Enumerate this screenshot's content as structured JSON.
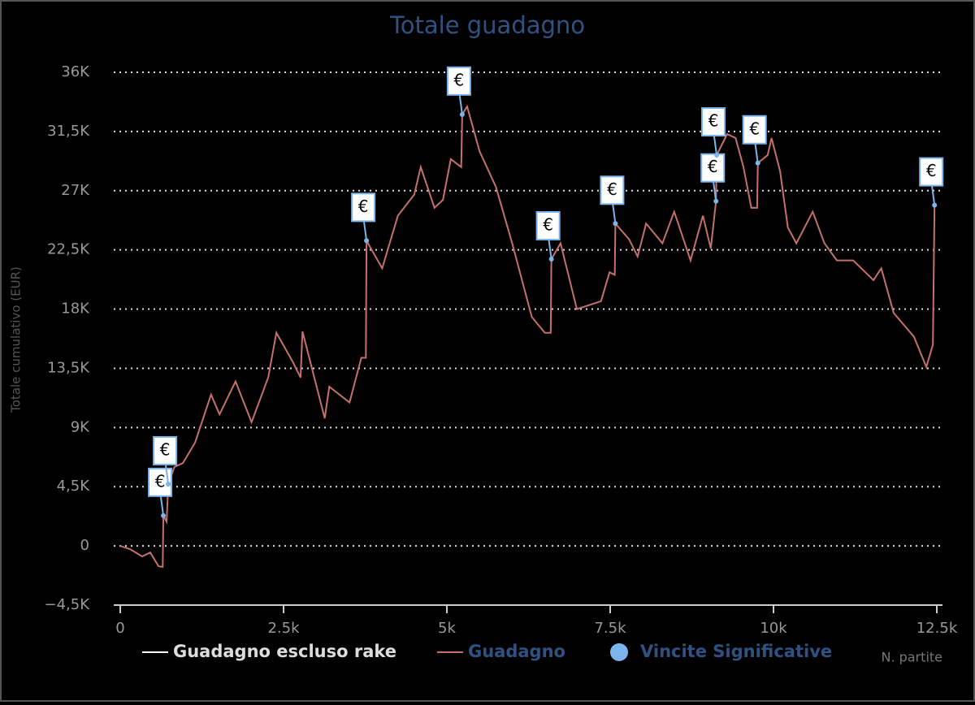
{
  "chart_data": {
    "type": "line",
    "title": "Totale guadagno",
    "x_label": "N. partite",
    "y_label": "Totale cumulativo (EUR)",
    "xlim": [
      0,
      12500
    ],
    "xticks": [
      0,
      {
        "value": 2500,
        "label": "2.5k"
      },
      {
        "value": 5000,
        "label": "5k"
      },
      {
        "value": 7500,
        "label": "7.5k"
      },
      {
        "value": 10000,
        "label": "10k"
      },
      {
        "value": 12500,
        "label": "12.5k"
      }
    ],
    "ylim": [
      -4500,
      36000
    ],
    "yticks": [
      {
        "value": -4500,
        "label": "−4,5K"
      },
      0,
      {
        "value": 4500,
        "label": "4,5K"
      },
      {
        "value": 9000,
        "label": "9K"
      },
      {
        "value": 13500,
        "label": "13,5K"
      },
      {
        "value": 18000,
        "label": "18K"
      },
      {
        "value": 22500,
        "label": "22,5K"
      },
      {
        "value": 27000,
        "label": "27K"
      },
      {
        "value": 31500,
        "label": "31,5K"
      },
      {
        "value": 36000,
        "label": "36K"
      }
    ],
    "grid": true,
    "legend": "bottom",
    "marker_label": "€",
    "series": [
      {
        "name": "Guadagno escluso rake",
        "color": "#ffffff"
      },
      {
        "name": "Guadagno",
        "color": "#c4716c",
        "x": [
          0,
          150,
          335,
          460,
          585,
          650,
          660,
          710,
          735,
          830,
          960,
          1145,
          1390,
          1520,
          1765,
          2010,
          2265,
          2390,
          2640,
          2760,
          2790,
          3130,
          3200,
          3510,
          3690,
          3760,
          3770,
          4010,
          4250,
          4500,
          4600,
          4810,
          4940,
          5060,
          5220,
          5235,
          5310,
          5500,
          5750,
          6000,
          6300,
          6500,
          6590,
          6600,
          6740,
          6990,
          7360,
          7490,
          7570,
          7580,
          7790,
          7920,
          8050,
          8300,
          8480,
          8730,
          8920,
          9040,
          9120,
          9130,
          9290,
          9420,
          9540,
          9660,
          9750,
          9760,
          9910,
          9970,
          10100,
          10220,
          10350,
          10600,
          10780,
          10970,
          11220,
          11530,
          11650,
          11840,
          12150,
          12340,
          12440,
          12465
        ],
        "values": [
          0,
          -250,
          -800,
          -500,
          -1540,
          -1600,
          2300,
          1850,
          4700,
          6000,
          6300,
          7850,
          11500,
          10000,
          12500,
          9400,
          12800,
          16200,
          14000,
          12800,
          16300,
          9700,
          12100,
          10900,
          14300,
          14300,
          23200,
          21100,
          25100,
          26700,
          28800,
          25700,
          26300,
          29400,
          28800,
          32800,
          33400,
          30000,
          27300,
          23000,
          17400,
          16200,
          16200,
          21800,
          23000,
          18000,
          18600,
          20800,
          20600,
          24500,
          23300,
          22000,
          24500,
          23000,
          25400,
          21700,
          25100,
          22600,
          26200,
          29700,
          31300,
          31000,
          28800,
          25700,
          25700,
          29100,
          29700,
          31000,
          28500,
          24200,
          23000,
          25400,
          23000,
          21700,
          21700,
          20200,
          21100,
          17700,
          15900,
          13600,
          15300,
          25900
        ]
      },
      {
        "name": "Vincite Significative",
        "color": "#7cb5ec",
        "type": "scatter",
        "x": [
          660,
          735,
          3770,
          5235,
          6600,
          7580,
          9120,
          9130,
          9760,
          12465
        ],
        "values": [
          2300,
          4700,
          23200,
          32800,
          21800,
          24500,
          26200,
          29700,
          29100,
          25900
        ]
      }
    ]
  }
}
